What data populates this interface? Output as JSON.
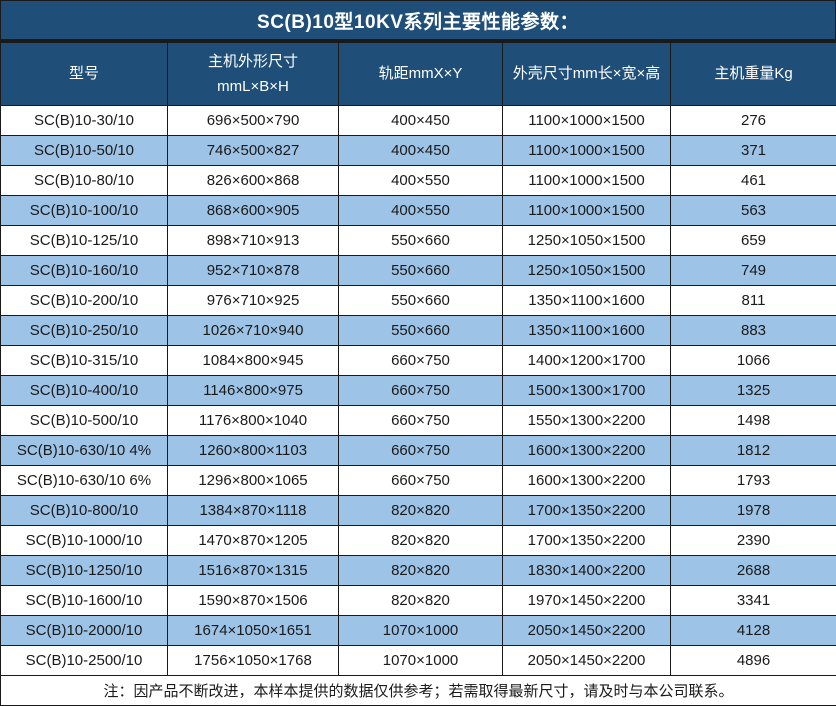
{
  "title": "SC(B)10型10KV系列主要性能参数：",
  "table": {
    "columns": [
      "型号",
      "主机外形尺寸\nmmL×B×H",
      "轨距mmX×Y",
      "外壳尺寸mm长×宽×高",
      "主机重量Kg"
    ],
    "rows": [
      [
        "SC(B)10-30/10",
        "696×500×790",
        "400×450",
        "1100×1000×1500",
        "276"
      ],
      [
        "SC(B)10-50/10",
        "746×500×827",
        "400×450",
        "1100×1000×1500",
        "371"
      ],
      [
        "SC(B)10-80/10",
        "826×600×868",
        "400×550",
        "1100×1000×1500",
        "461"
      ],
      [
        "SC(B)10-100/10",
        "868×600×905",
        "400×550",
        "1100×1000×1500",
        "563"
      ],
      [
        "SC(B)10-125/10",
        "898×710×913",
        "550×660",
        "1250×1050×1500",
        "659"
      ],
      [
        "SC(B)10-160/10",
        "952×710×878",
        "550×660",
        "1250×1050×1500",
        "749"
      ],
      [
        "SC(B)10-200/10",
        "976×710×925",
        "550×660",
        "1350×1100×1600",
        "811"
      ],
      [
        "SC(B)10-250/10",
        "1026×710×940",
        "550×660",
        "1350×1100×1600",
        "883"
      ],
      [
        "SC(B)10-315/10",
        "1084×800×945",
        "660×750",
        "1400×1200×1700",
        "1066"
      ],
      [
        "SC(B)10-400/10",
        "1146×800×975",
        "660×750",
        "1500×1300×1700",
        "1325"
      ],
      [
        "SC(B)10-500/10",
        "1176×800×1040",
        "660×750",
        "1550×1300×2200",
        "1498"
      ],
      [
        "SC(B)10-630/10 4%",
        "1260×800×1103",
        "660×750",
        "1600×1300×2200",
        "1812"
      ],
      [
        "SC(B)10-630/10 6%",
        "1296×800×1065",
        "660×750",
        "1600×1300×2200",
        "1793"
      ],
      [
        "SC(B)10-800/10",
        "1384×870×1118",
        "820×820",
        "1700×1350×2200",
        "1978"
      ],
      [
        "SC(B)10-1000/10",
        "1470×870×1205",
        "820×820",
        "1700×1350×2200",
        "2390"
      ],
      [
        "SC(B)10-1250/10",
        "1516×870×1315",
        "820×820",
        "1830×1400×2200",
        "2688"
      ],
      [
        "SC(B)10-1600/10",
        "1590×870×1506",
        "820×820",
        "1970×1450×2200",
        "3341"
      ],
      [
        "SC(B)10-2000/10",
        "1674×1050×1651",
        "1070×1000",
        "2050×1450×2200",
        "4128"
      ],
      [
        "SC(B)10-2500/10",
        "1756×1050×1768",
        "1070×1000",
        "2050×1450×2200",
        "4896"
      ]
    ]
  },
  "footnote": "注：因产品不断改进，本样本提供的数据仅供参考；若需取得最新尺寸，请及时与本公司联系。",
  "colors": {
    "header_bg": "#1F4E79",
    "row_stripe_bg": "#9DC3E6",
    "row_bg": "#FFFFFF",
    "border": "#1A1A1A",
    "header_text": "#FFFFFF",
    "body_text": "#1A1A1A"
  }
}
